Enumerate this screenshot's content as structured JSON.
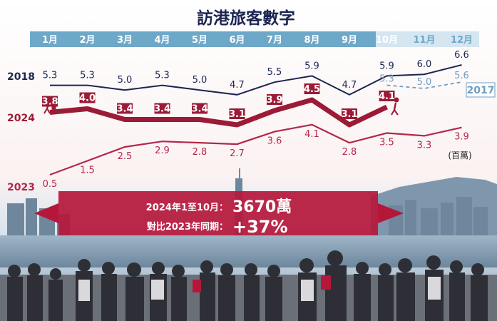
{
  "chart_data": {
    "type": "line",
    "title": "訪港旅客數字",
    "unit": "(百萬)",
    "categories": [
      "1月",
      "2月",
      "3月",
      "4月",
      "5月",
      "6月",
      "7月",
      "8月",
      "9月",
      "10月",
      "11月",
      "12月"
    ],
    "series": [
      {
        "name": "2018",
        "values": [
          5.3,
          5.3,
          5.0,
          5.3,
          5.0,
          4.7,
          5.5,
          5.9,
          4.7,
          5.9,
          6.0,
          6.6
        ],
        "color": "#1c2550"
      },
      {
        "name": "2017",
        "values": [
          null,
          null,
          null,
          null,
          null,
          null,
          null,
          null,
          null,
          5.3,
          5.0,
          5.6
        ],
        "color": "#6f9fc0",
        "dashed": true
      },
      {
        "name": "2024",
        "values": [
          3.8,
          4.0,
          3.4,
          3.4,
          3.4,
          3.1,
          3.9,
          4.5,
          3.1,
          4.1,
          null,
          null
        ],
        "color": "#9b1b36"
      },
      {
        "name": "2023",
        "values": [
          0.5,
          1.5,
          2.5,
          2.9,
          2.8,
          2.7,
          3.6,
          4.1,
          2.8,
          3.5,
          3.3,
          3.9
        ],
        "color": "#b3284a"
      }
    ]
  },
  "banner": {
    "line1_label": "2024年1至10月：",
    "line1_value": "3670萬",
    "line2_label": "對比2023年同期：",
    "line2_value": "+37%"
  },
  "colors": {
    "header_band": "#6ea8c8",
    "banner_red": "#b5173b",
    "navy": "#1c2550"
  }
}
